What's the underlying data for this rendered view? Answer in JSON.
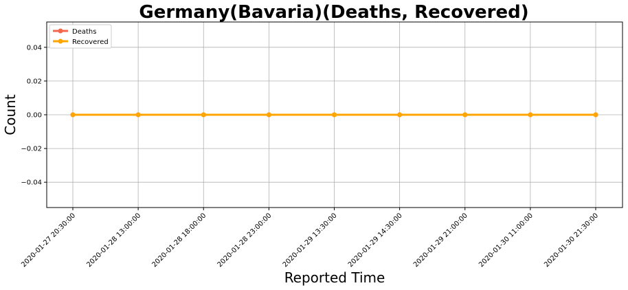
{
  "chart_data": {
    "type": "line",
    "title": "Germany(Bavaria)(Deaths, Recovered)",
    "xlabel": "Reported Time",
    "ylabel": "Count",
    "categories": [
      "2020-01-27 20:30:00",
      "2020-01-28 13:00:00",
      "2020-01-28 18:00:00",
      "2020-01-28 23:00:00",
      "2020-01-29 13:30:00",
      "2020-01-29 14:30:00",
      "2020-01-29 21:00:00",
      "2020-01-30 11:00:00",
      "2020-01-30 21:30:00"
    ],
    "series": [
      {
        "name": "Deaths",
        "color": "#f4674c",
        "values": [
          0,
          0,
          0,
          0,
          0,
          0,
          0,
          0,
          0
        ]
      },
      {
        "name": "Recovered",
        "color": "#ffa500",
        "values": [
          0,
          0,
          0,
          0,
          0,
          0,
          0,
          0,
          0
        ]
      }
    ],
    "ylim": [
      -0.055,
      0.055
    ],
    "yticks": [
      -0.04,
      -0.02,
      0.0,
      0.02,
      0.04
    ],
    "ytick_labels": [
      "−0.04",
      "−0.02",
      "0.00",
      "0.02",
      "0.04"
    ],
    "grid": true,
    "legend_position": "upper-left"
  }
}
